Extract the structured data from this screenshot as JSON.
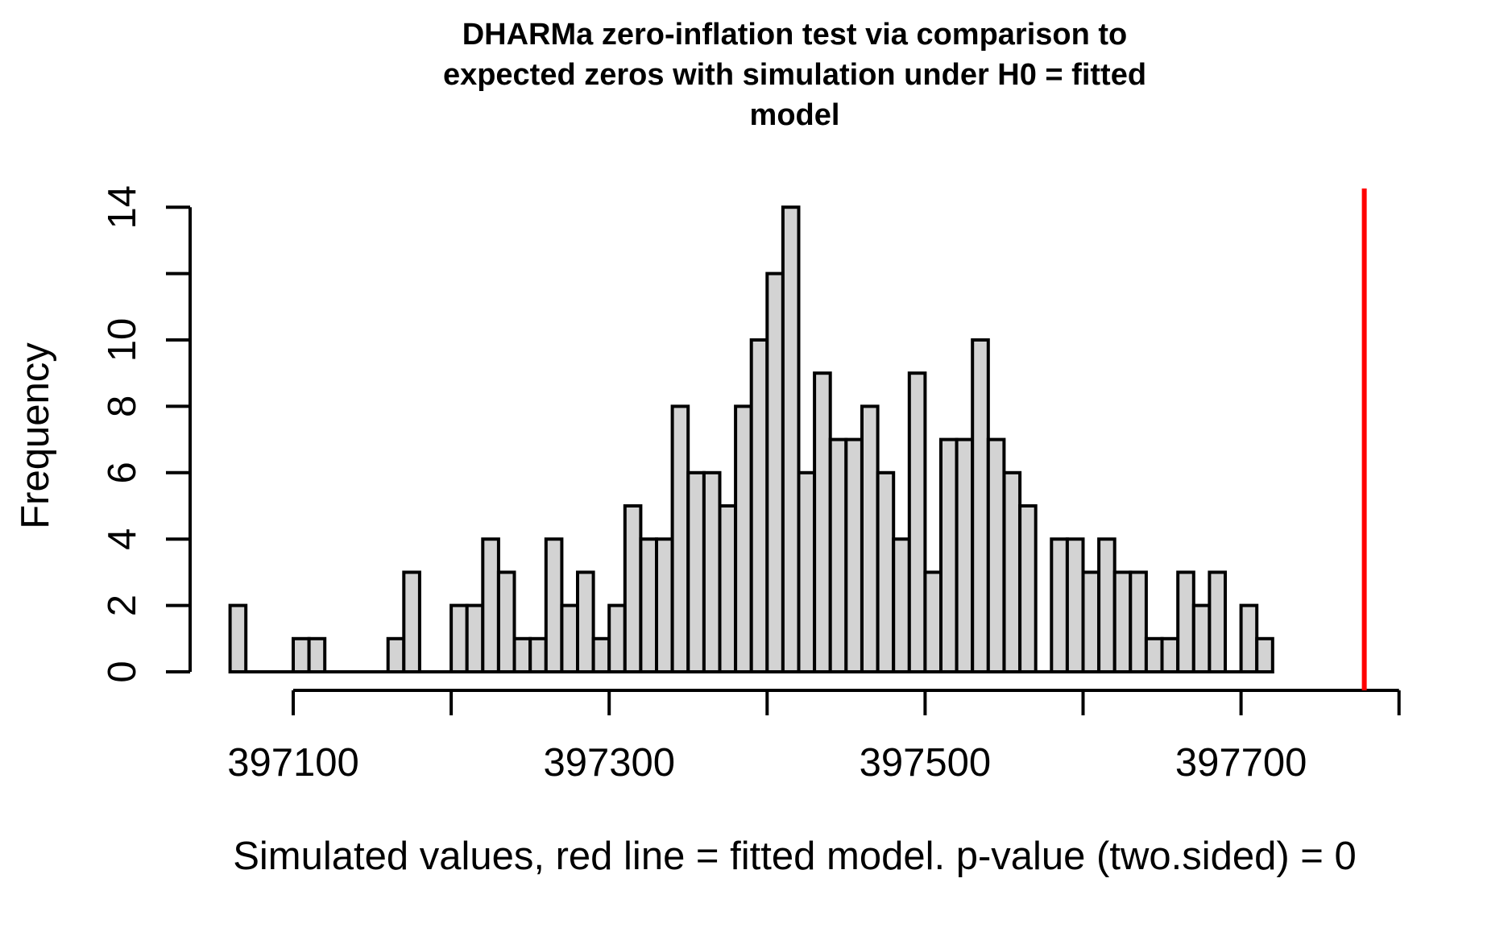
{
  "chart_data": {
    "type": "bar",
    "subtype": "histogram",
    "title": "DHARMa zero-inflation test via comparison to\nexpected zeros with simulation under H0 = fitted\nmodel",
    "xlabel": "Simulated values, red line = fitted model. p-value (two.sided) = 0",
    "ylabel": "Frequency",
    "bin_start": 397060,
    "bin_width": 10,
    "counts": [
      2,
      0,
      0,
      0,
      1,
      1,
      0,
      0,
      0,
      0,
      1,
      3,
      0,
      0,
      2,
      2,
      4,
      3,
      1,
      1,
      4,
      2,
      3,
      1,
      2,
      5,
      4,
      4,
      8,
      6,
      6,
      5,
      8,
      10,
      12,
      14,
      6,
      9,
      7,
      7,
      8,
      6,
      4,
      9,
      3,
      7,
      7,
      10,
      7,
      6,
      5,
      0,
      4,
      4,
      3,
      4,
      3,
      3,
      1,
      1,
      3,
      2,
      3,
      0,
      2,
      1
    ],
    "total_simulations": 250,
    "x_ticks": [
      397100,
      397200,
      397300,
      397400,
      397500,
      397600,
      397700,
      397800
    ],
    "x_tick_labels": [
      "397100",
      "",
      "397300",
      "",
      "397500",
      "",
      "397700",
      ""
    ],
    "y_ticks": [
      0,
      2,
      4,
      6,
      8,
      10,
      12,
      14
    ],
    "y_tick_labels": [
      "0",
      "2",
      "4",
      "6",
      "8",
      "10",
      "",
      "14"
    ],
    "xlim": [
      397060,
      397800
    ],
    "ylim": [
      0,
      14
    ],
    "grid": false,
    "legend": "none",
    "red_line_x": 397778,
    "p_value": "0",
    "test_alternative": "two.sided",
    "colors": {
      "bar_fill": "#d3d3d3",
      "bar_border": "#000000",
      "red_line": "#ff0000",
      "axis": "#000000",
      "text": "#000000",
      "background": "#ffffff"
    }
  }
}
